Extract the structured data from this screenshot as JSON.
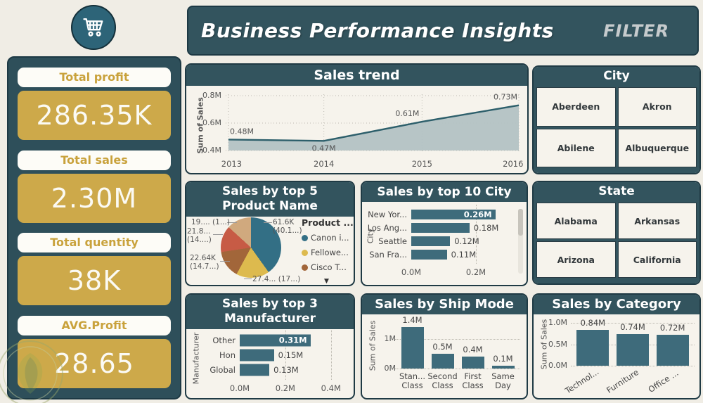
{
  "header": {
    "title": "Business Performance Insights",
    "filter_label": "FILTER"
  },
  "kpis": [
    {
      "label": "Total profit",
      "value": "286.35K"
    },
    {
      "label": "Total sales",
      "value": "2.30M"
    },
    {
      "label": "Total quentity",
      "value": "38K"
    },
    {
      "label": "AVG.Profit",
      "value": "28.65"
    }
  ],
  "filters": {
    "city": {
      "title": "City",
      "options": [
        "Aberdeen",
        "Akron",
        "Abilene",
        "Albuquerque"
      ]
    },
    "state": {
      "title": "State",
      "options": [
        "Alabama",
        "Arkansas",
        "Arizona",
        "California"
      ]
    }
  },
  "colors": {
    "teal_header": "#33545e",
    "sidebar": "#2e4f5a",
    "gold": "#cda94a",
    "gold_text": "#c9a23c",
    "bar": "#3e6b7b",
    "trend_line": "#2d5f6b",
    "trend_fill": "#b3c2c4",
    "background": "#f0ede5",
    "card_bg": "#f6f3ec"
  },
  "chart_data": {
    "trend": {
      "type": "area",
      "title": "Sales trend",
      "ylabel": "Sum of Sales",
      "x": [
        "2013",
        "2014",
        "2015",
        "2016"
      ],
      "values": [
        0.48,
        0.47,
        0.61,
        0.73
      ],
      "value_labels": [
        "0.48M",
        "0.47M",
        "0.61M",
        "0.73M"
      ],
      "ylim": [
        0.4,
        0.8
      ],
      "yticks": [
        {
          "label": "0.8M",
          "value": 0.8
        },
        {
          "label": "0.6M",
          "value": 0.6
        },
        {
          "label": "0.4M",
          "value": 0.4
        }
      ],
      "line_color": "#2d5f6b",
      "fill_color": "#b3c2c4",
      "grid": "dotted"
    },
    "product_pie": {
      "type": "pie",
      "title": "Sales by top 5 Product Name",
      "legend_title": "Product ...",
      "legend_more": "▼",
      "slices": [
        {
          "legend": "Canon i...",
          "label_lines": [
            "61.6K",
            "(40.1...)"
          ],
          "pct": 40.1,
          "color": "#336f85"
        },
        {
          "legend": "Fellowe...",
          "label_lines": [
            "27.4... (17...)"
          ],
          "pct": 17.8,
          "color": "#ddba4e"
        },
        {
          "legend": "Cisco T...",
          "label_lines": [
            "22.64K",
            "(14.7...)"
          ],
          "pct": 14.7,
          "color": "#a2663a"
        },
        {
          "legend": "",
          "label_lines": [
            "21.8...",
            "(14....)"
          ],
          "pct": 14.2,
          "color": "#c75b45"
        },
        {
          "legend": "",
          "label_lines": [
            "19.... (1...)"
          ],
          "pct": 13.2,
          "color": "#d0a97e"
        }
      ]
    },
    "top_city": {
      "type": "hbar",
      "title": "Sales by top 10 City",
      "axis_label": "City",
      "categories": [
        "New Yor...",
        "Los Ang...",
        "Seattle",
        "San Fra..."
      ],
      "values": [
        0.26,
        0.18,
        0.12,
        0.11
      ],
      "value_labels": [
        "0.26M",
        "0.18M",
        "0.12M",
        "0.11M"
      ],
      "xlim": [
        0,
        0.3
      ],
      "xticks": [
        {
          "label": "0.0M",
          "value": 0
        },
        {
          "label": "0.2M",
          "value": 0.2
        }
      ],
      "scrollbar": true
    },
    "manufacturer": {
      "type": "hbar",
      "title": "Sales by top 3 Manufacturer",
      "axis_label": "Manufacturer",
      "categories": [
        "Other",
        "Hon",
        "Global"
      ],
      "values": [
        0.31,
        0.15,
        0.13
      ],
      "value_labels": [
        "0.31M",
        "0.15M",
        "0.13M"
      ],
      "xlim": [
        0,
        0.45
      ],
      "xticks": [
        {
          "label": "0.0M",
          "value": 0
        },
        {
          "label": "0.2M",
          "value": 0.2
        },
        {
          "label": "0.4M",
          "value": 0.4
        }
      ]
    },
    "ship_mode": {
      "type": "bar",
      "title": "Sales by Ship Mode",
      "axis_label": "Sum of Sales",
      "categories": [
        [
          "Stan...",
          "Class"
        ],
        [
          "Second",
          "Class"
        ],
        [
          "First",
          "Class"
        ],
        [
          "Same",
          "Day"
        ]
      ],
      "values": [
        1.4,
        0.5,
        0.4,
        0.1
      ],
      "value_labels": [
        "1.4M",
        "0.5M",
        "0.4M",
        "0.1M"
      ],
      "ylim": [
        0,
        1.5
      ],
      "yticks": [
        {
          "label": "1M",
          "value": 1
        },
        {
          "label": "0M",
          "value": 0
        }
      ]
    },
    "category": {
      "type": "bar",
      "title": "Sales by Category",
      "axis_label": "Sum of Sales",
      "categories": [
        "Technol...",
        "Furniture",
        "Office ..."
      ],
      "values": [
        0.84,
        0.74,
        0.72
      ],
      "value_labels": [
        "0.84M",
        "0.74M",
        "0.72M"
      ],
      "ylim": [
        0,
        1.0
      ],
      "yticks": [
        {
          "label": "1.0M",
          "value": 1.0
        },
        {
          "label": "0.5M",
          "value": 0.5
        },
        {
          "label": "0.0M",
          "value": 0.0
        }
      ],
      "rotated_labels": true
    }
  }
}
